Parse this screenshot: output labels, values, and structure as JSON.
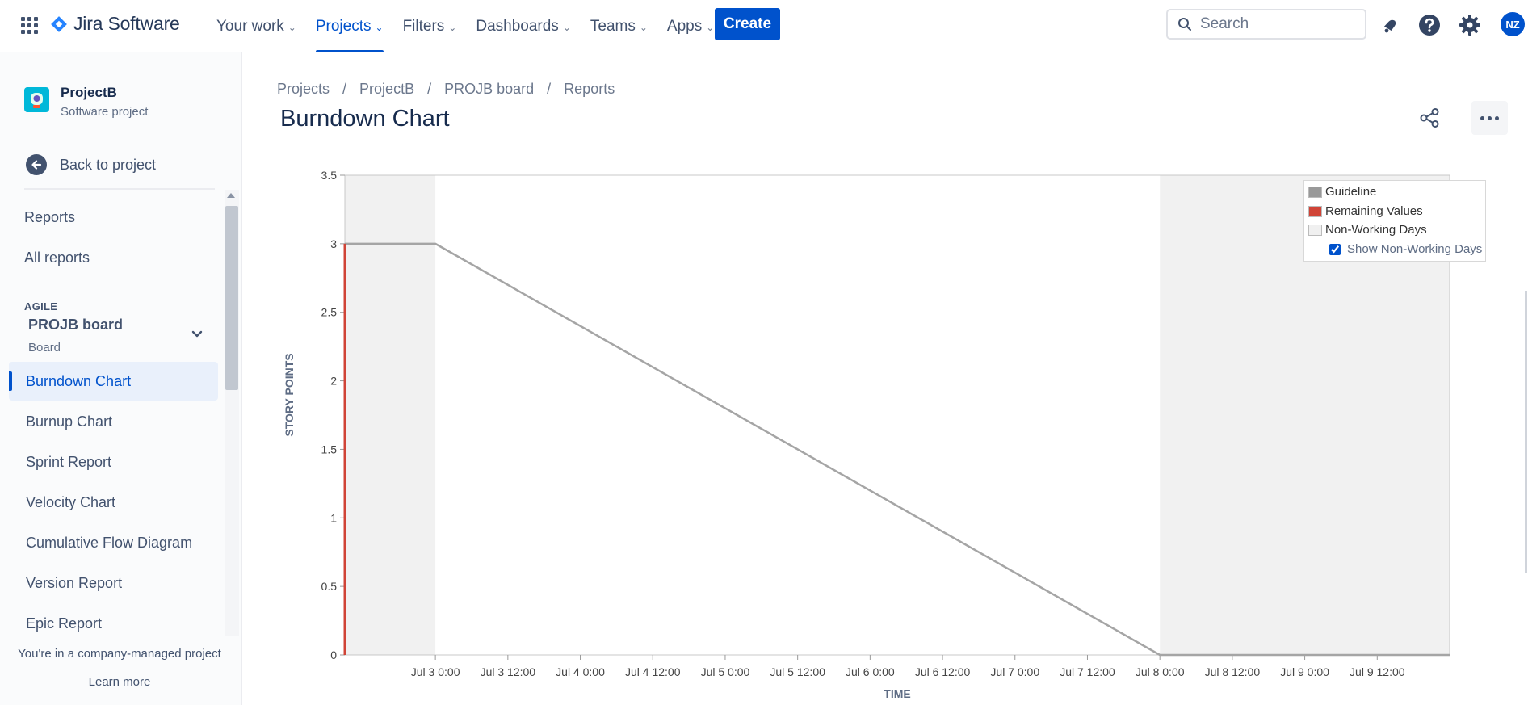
{
  "topnav": {
    "product_name": "Jira Software",
    "items": [
      {
        "label": "Your work"
      },
      {
        "label": "Projects"
      },
      {
        "label": "Filters"
      },
      {
        "label": "Dashboards"
      },
      {
        "label": "Teams"
      },
      {
        "label": "Apps"
      }
    ],
    "active_index": 1,
    "create_label": "Create",
    "search_placeholder": "Search",
    "avatar_initials": "NZ",
    "accent_color": "#0052cc"
  },
  "sidebar": {
    "project_name": "ProjectB",
    "project_type": "Software project",
    "back_label": "Back to project",
    "reports_title": "Reports",
    "all_reports_label": "All reports",
    "agile_heading": "AGILE",
    "board_name": "PROJB board",
    "board_type": "Board",
    "report_links": [
      {
        "label": "Burndown Chart"
      },
      {
        "label": "Burnup Chart"
      },
      {
        "label": "Sprint Report"
      },
      {
        "label": "Velocity Chart"
      },
      {
        "label": "Cumulative Flow Diagram"
      },
      {
        "label": "Version Report"
      },
      {
        "label": "Epic Report"
      }
    ],
    "selected_index": 0,
    "footer_text": "You're in a company-managed project",
    "learn_more_label": "Learn more"
  },
  "main": {
    "breadcrumbs": [
      "Projects",
      "ProjectB",
      "PROJB board",
      "Reports"
    ],
    "title": "Burndown Chart"
  },
  "chart_data": {
    "type": "line",
    "title": "Burndown Chart",
    "xlabel": "TIME",
    "ylabel": "STORY POINTS",
    "ylim": [
      0,
      3.5
    ],
    "yticks": [
      0,
      0.5,
      1,
      1.5,
      2,
      2.5,
      3,
      3.5
    ],
    "xlim_hours": [
      -15,
      168
    ],
    "x_unit": "hours since Jul 3 0:00",
    "xticks": [
      {
        "hour": 0,
        "label": "Jul 3 0:00"
      },
      {
        "hour": 12,
        "label": "Jul 3 12:00"
      },
      {
        "hour": 24,
        "label": "Jul 4 0:00"
      },
      {
        "hour": 36,
        "label": "Jul 4 12:00"
      },
      {
        "hour": 48,
        "label": "Jul 5 0:00"
      },
      {
        "hour": 60,
        "label": "Jul 5 12:00"
      },
      {
        "hour": 72,
        "label": "Jul 6 0:00"
      },
      {
        "hour": 84,
        "label": "Jul 6 12:00"
      },
      {
        "hour": 96,
        "label": "Jul 7 0:00"
      },
      {
        "hour": 108,
        "label": "Jul 7 12:00"
      },
      {
        "hour": 120,
        "label": "Jul 8 0:00"
      },
      {
        "hour": 132,
        "label": "Jul 8 12:00"
      },
      {
        "hour": 144,
        "label": "Jul 9 0:00"
      },
      {
        "hour": 156,
        "label": "Jul 9 12:00"
      }
    ],
    "non_working_ranges_hours": [
      [
        -15,
        0
      ],
      [
        120,
        168
      ]
    ],
    "series": [
      {
        "name": "Guideline",
        "color": "#a5a5a5",
        "points": [
          [
            -15,
            3
          ],
          [
            0,
            3
          ],
          [
            120,
            0
          ],
          [
            168,
            0
          ]
        ]
      },
      {
        "name": "Remaining Values",
        "color": "#d04437",
        "points": [
          [
            -15,
            0
          ],
          [
            -15,
            3
          ]
        ]
      }
    ],
    "legend": {
      "entries": [
        {
          "label": "Guideline",
          "color": "#999999"
        },
        {
          "label": "Remaining Values",
          "color": "#d04437"
        },
        {
          "label": "Non-Working Days",
          "color": "#f0f0f0"
        }
      ],
      "checkbox_label": "Show Non-Working Days",
      "checkbox_checked": true,
      "placement": "top-right"
    },
    "non_working_color": "#f1f1f1"
  }
}
